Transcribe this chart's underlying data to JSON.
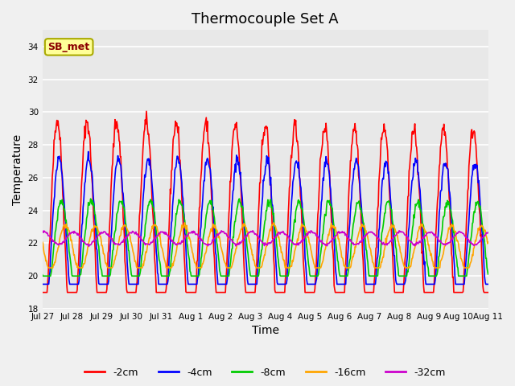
{
  "title": "Thermocouple Set A",
  "xlabel": "Time",
  "ylabel": "Temperature",
  "ylim": [
    18,
    35
  ],
  "yticks": [
    18,
    20,
    22,
    24,
    26,
    28,
    30,
    32,
    34
  ],
  "series_labels": [
    "-2cm",
    "-4cm",
    "-8cm",
    "-16cm",
    "-32cm"
  ],
  "series_colors": [
    "#ff0000",
    "#0000ff",
    "#00cc00",
    "#ffa500",
    "#cc00cc"
  ],
  "xtick_labels": [
    "Jul 27",
    "Jul 28",
    "Jul 29",
    "Jul 30",
    "Jul 31",
    "Aug 1",
    "Aug 2",
    "Aug 3",
    "Aug 4",
    "Aug 5",
    "Aug 6",
    "Aug 7",
    "Aug 8",
    "Aug 9",
    "Aug 10",
    "Aug 11"
  ],
  "annotation_text": "SB_met",
  "bg_color": "#e8e8e8",
  "fig_color": "#f0f0f0",
  "legend_fontsize": 9,
  "title_fontsize": 13,
  "axis_fontsize": 10,
  "tick_fontsize": 7.5
}
